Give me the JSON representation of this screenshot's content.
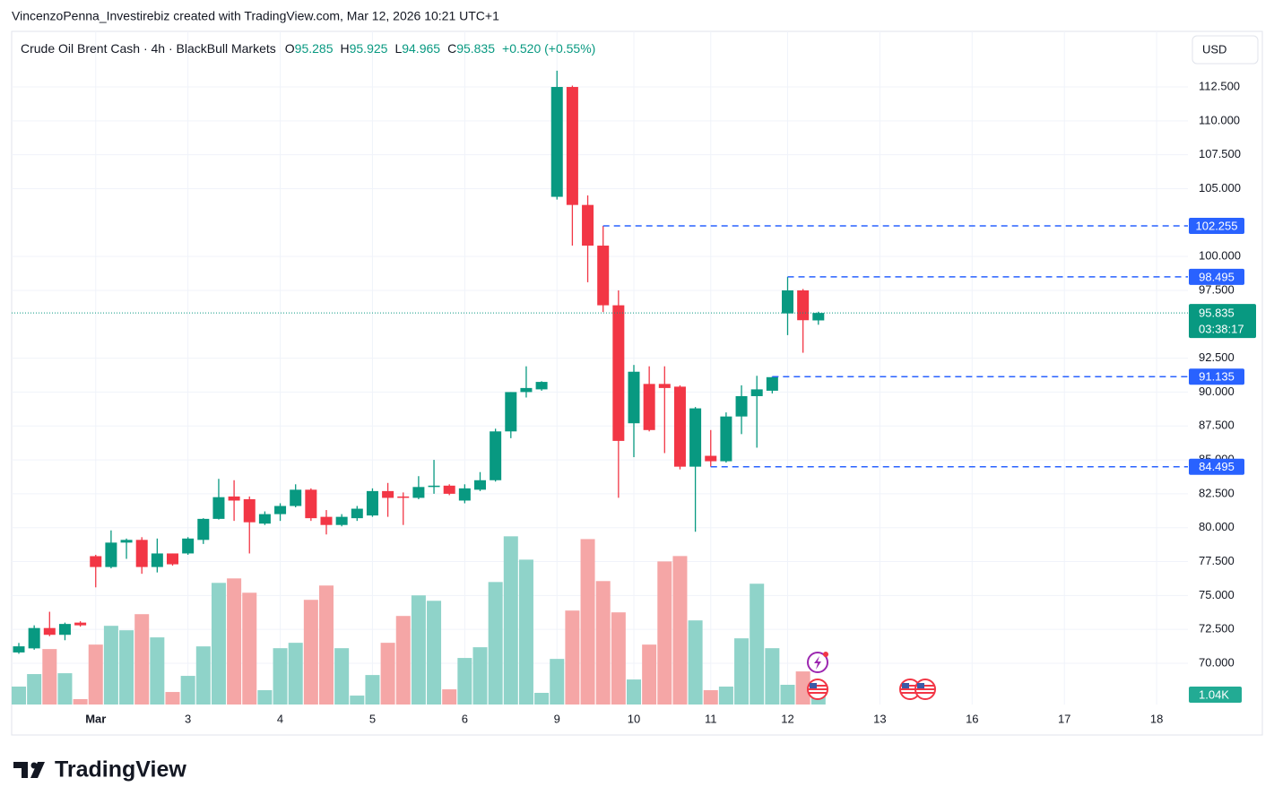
{
  "attribution": "VincenzoPenna_Investirebiz created with TradingView.com, Mar 12, 2026 10:21 UTC+1",
  "brand": "TradingView",
  "chart_data": {
    "type": "candlestick",
    "title": "Crude Oil Brent Cash · 4h · BlackBull Markets",
    "header_letters": [
      "O",
      "H",
      "L",
      "C"
    ],
    "change": "+0.520 (+0.55%)",
    "currency": "USD",
    "countdown": "03:38:17",
    "last_volume_label": "1.04K",
    "up_color": "#089981",
    "down_color": "#f23645",
    "volume_up_color": "#8fd3c9",
    "volume_down_color": "#f5a6a6",
    "level_color": "#2962ff",
    "grid": true,
    "categories": [
      null,
      null,
      null,
      null,
      null,
      "Mar",
      null,
      null,
      null,
      null,
      null,
      "3",
      null,
      null,
      null,
      null,
      null,
      "4",
      null,
      null,
      null,
      null,
      null,
      "5",
      null,
      null,
      null,
      null,
      null,
      "6",
      null,
      null,
      null,
      null,
      null,
      "9",
      null,
      null,
      null,
      null,
      "10",
      null,
      null,
      null,
      null,
      "11",
      null,
      null,
      null,
      null,
      "12",
      null,
      null,
      null,
      null,
      null,
      "13",
      null,
      null,
      null,
      null,
      null,
      "16",
      null,
      null,
      null,
      null,
      null,
      "17",
      null,
      null,
      null,
      null,
      null,
      "18",
      null
    ],
    "open": [
      70.8,
      71.1,
      72.6,
      72.1,
      73.0,
      77.9,
      77.1,
      78.9,
      79.1,
      77.1,
      78.1,
      78.1,
      79.1,
      80.65,
      82.3,
      82.1,
      80.3,
      81.0,
      81.6,
      82.8,
      80.8,
      80.2,
      80.7,
      80.9,
      82.7,
      82.3,
      82.2,
      83.0,
      83.1,
      82.0,
      82.8,
      83.5,
      87.1,
      90.0,
      90.2,
      104.4,
      112.5,
      103.8,
      100.8,
      96.4,
      87.7,
      90.6,
      90.6,
      90.4,
      84.5,
      85.3,
      84.9,
      88.2,
      89.7,
      90.1,
      95.8,
      97.5,
      95.285,
      null,
      null,
      null,
      null,
      null,
      null,
      null,
      null,
      null,
      null,
      null,
      null,
      null,
      null,
      null,
      null,
      null,
      null,
      null,
      null,
      null,
      null,
      null
    ],
    "high": [
      71.5,
      72.8,
      73.8,
      73.0,
      73.1,
      78.0,
      79.8,
      79.2,
      79.3,
      79.2,
      78.1,
      79.3,
      80.7,
      83.6,
      83.5,
      82.3,
      81.2,
      81.8,
      83.2,
      82.9,
      81.3,
      81.0,
      81.6,
      82.9,
      83.3,
      82.6,
      83.8,
      85.0,
      83.2,
      83.2,
      84.1,
      87.3,
      90.0,
      91.9,
      90.8,
      113.7,
      112.6,
      104.5,
      102.255,
      97.5,
      92.0,
      91.9,
      91.9,
      90.5,
      88.9,
      87.2,
      88.5,
      90.5,
      91.2,
      91.135,
      98.495,
      97.6,
      95.925,
      null,
      null,
      null,
      null,
      null,
      null,
      null,
      null,
      null,
      null,
      null,
      null,
      null,
      null,
      null,
      null,
      null,
      null,
      null,
      null,
      null,
      null,
      null
    ],
    "low": [
      70.7,
      71.0,
      72.0,
      71.7,
      72.7,
      75.6,
      77.0,
      77.7,
      76.6,
      76.7,
      77.2,
      78.0,
      78.8,
      80.6,
      80.5,
      78.1,
      80.2,
      80.5,
      81.5,
      80.5,
      79.5,
      80.1,
      80.5,
      80.8,
      80.8,
      80.2,
      82.1,
      82.5,
      82.4,
      81.8,
      82.7,
      83.4,
      86.6,
      89.6,
      90.1,
      104.2,
      100.8,
      98.1,
      95.9,
      82.2,
      85.2,
      87.1,
      85.5,
      84.3,
      79.7,
      84.495,
      84.8,
      86.9,
      85.9,
      89.9,
      94.2,
      92.9,
      94.965,
      null,
      null,
      null,
      null,
      null,
      null,
      null,
      null,
      null,
      null,
      null,
      null,
      null,
      null,
      null,
      null,
      null,
      null,
      null,
      null,
      null,
      null,
      null
    ],
    "close": [
      71.25,
      72.6,
      72.1,
      72.9,
      72.8,
      77.1,
      78.9,
      79.1,
      77.1,
      78.1,
      77.3,
      79.2,
      80.65,
      82.25,
      82.0,
      80.4,
      81.0,
      81.6,
      82.8,
      80.7,
      80.2,
      80.8,
      81.4,
      82.7,
      82.2,
      82.2,
      83.0,
      83.1,
      82.5,
      82.9,
      83.5,
      87.1,
      90.0,
      90.3,
      90.75,
      112.5,
      103.8,
      100.8,
      96.4,
      86.4,
      91.5,
      87.2,
      90.3,
      84.5,
      88.8,
      84.9,
      88.2,
      89.7,
      90.2,
      91.1,
      97.5,
      95.3,
      95.835,
      null,
      null,
      null,
      null,
      null,
      null,
      null,
      null,
      null,
      null,
      null,
      null,
      null,
      null,
      null,
      null,
      null,
      null,
      null,
      null,
      null,
      null,
      null
    ],
    "volume": [
      1890,
      3210,
      5850,
      3300,
      570,
      6320,
      8300,
      7830,
      9530,
      7080,
      1320,
      3020,
      6130,
      12830,
      13300,
      11790,
      1510,
      5940,
      6510,
      11040,
      12550,
      5940,
      940,
      3110,
      6510,
      9340,
      11510,
      10940,
      1600,
      4910,
      6040,
      12920,
      17740,
      15280,
      1230,
      4810,
      9910,
      17450,
      13020,
      9720,
      2640,
      6320,
      15090,
      15660,
      8870,
      1510,
      1890,
      6980,
      12740,
      5940,
      2080,
      3490,
      1040,
      null,
      null,
      null,
      null,
      null,
      null,
      null,
      null,
      null,
      null,
      null,
      null,
      null,
      null,
      null,
      null,
      null,
      null,
      null,
      null,
      null,
      null,
      null
    ],
    "volume_lim": [
      0,
      71000
    ],
    "ylim": [
      66.96,
      116.6
    ],
    "yticks": [
      {
        "value": 70,
        "label": "70.000"
      },
      {
        "value": 72.5,
        "label": "72.500"
      },
      {
        "value": 75,
        "label": "75.000"
      },
      {
        "value": 77.5,
        "label": "77.500"
      },
      {
        "value": 80,
        "label": "80.000"
      },
      {
        "value": 82.5,
        "label": "82.500"
      },
      {
        "value": 85,
        "label": "85.000"
      },
      {
        "value": 87.5,
        "label": "87.500"
      },
      {
        "value": 90,
        "label": "90.000"
      },
      {
        "value": 92.5,
        "label": "92.500"
      },
      {
        "value": 97.5,
        "label": "97.500"
      },
      {
        "value": 100,
        "label": "100.000"
      },
      {
        "value": 105,
        "label": "105.000"
      },
      {
        "value": 107.5,
        "label": "107.500"
      },
      {
        "value": 110,
        "label": "110.000"
      },
      {
        "value": 112.5,
        "label": "112.500"
      }
    ],
    "levels": [
      102.255,
      98.495,
      91.135,
      84.495
    ]
  }
}
